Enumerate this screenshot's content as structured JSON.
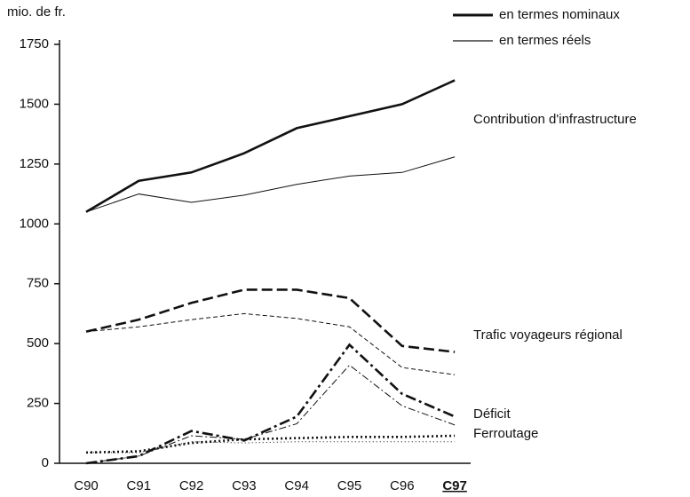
{
  "chart_data": {
    "type": "line",
    "y_label": "mio. de fr.",
    "categories": [
      "C90",
      "C91",
      "C92",
      "C93",
      "C94",
      "C95",
      "C96",
      "C97"
    ],
    "highlight_category": 7,
    "ylim": [
      0,
      1750
    ],
    "yticks": [
      0,
      250,
      500,
      750,
      1000,
      1250,
      1500,
      1750
    ],
    "legend": {
      "nominal": "en termes nominaux",
      "real": "en termes réels"
    },
    "color": "#111111",
    "series": [
      {
        "name": "Contribution d'infrastructure",
        "dash": "solid",
        "nominal": [
          1050,
          1180,
          1215,
          1295,
          1400,
          1450,
          1500,
          1600
        ],
        "real": [
          1050,
          1125,
          1090,
          1120,
          1165,
          1200,
          1215,
          1280
        ]
      },
      {
        "name": "Trafic voyageurs régional",
        "dash": "dashed",
        "nominal": [
          550,
          600,
          670,
          725,
          725,
          690,
          490,
          465
        ],
        "real": [
          550,
          570,
          600,
          625,
          605,
          570,
          400,
          370
        ]
      },
      {
        "name": "Déficit",
        "dash": "dashdot",
        "nominal": [
          0,
          30,
          135,
          95,
          195,
          495,
          290,
          195
        ],
        "real": [
          0,
          30,
          115,
          100,
          165,
          410,
          240,
          160
        ]
      },
      {
        "name": "Ferroutage",
        "dash": "dotted",
        "nominal": [
          45,
          50,
          85,
          100,
          105,
          110,
          110,
          115
        ],
        "real": [
          45,
          45,
          90,
          85,
          90,
          90,
          90,
          90
        ]
      }
    ]
  }
}
